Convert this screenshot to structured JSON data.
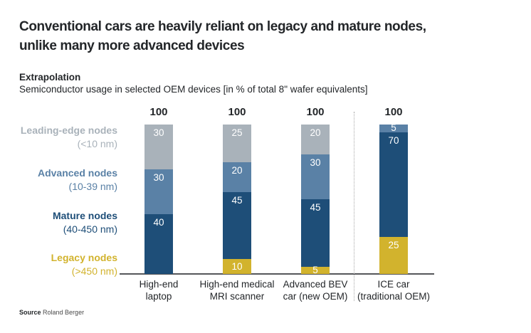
{
  "header": {
    "title_line1": "Conventional cars are heavily reliant on legacy and mature nodes,",
    "title_line2": "unlike many more advanced devices",
    "kicker": "Extrapolation",
    "subtitle": "Semiconductor usage in selected OEM devices [in % of total 8\" wafer equivalents]"
  },
  "footer": {
    "source_label": "Source",
    "source_value": "Roland Berger"
  },
  "chart_data": {
    "type": "bar",
    "stacked": true,
    "title": "Semiconductor usage in selected OEM devices [in % of total 8\" wafer equivalents]",
    "ylim": [
      0,
      100
    ],
    "grid": false,
    "legend_position": "left",
    "categories": [
      {
        "line1": "High-end",
        "line2": "laptop"
      },
      {
        "line1": "High-end medical",
        "line2": "MRI scanner"
      },
      {
        "line1": "Advanced BEV",
        "line2": "car (new OEM)"
      },
      {
        "line1": "ICE car",
        "line2": "(traditional OEM)"
      }
    ],
    "totals": [
      100,
      100,
      100,
      100
    ],
    "series": [
      {
        "name": "Leading-edge nodes",
        "range": "(<10 nm)",
        "color": "#a9b2ba",
        "values": [
          30,
          25,
          20,
          0
        ]
      },
      {
        "name": "Advanced nodes",
        "range": "(10-39 nm)",
        "color": "#5a81a6",
        "values": [
          30,
          20,
          30,
          5
        ]
      },
      {
        "name": "Mature nodes",
        "range": "(40-450 nm)",
        "color": "#1e4e78",
        "values": [
          40,
          45,
          45,
          70
        ]
      },
      {
        "name": "Legacy nodes",
        "range": "(>450 nm)",
        "color": "#d2b32d",
        "values": [
          0,
          10,
          5,
          25
        ]
      }
    ],
    "separator": {
      "style": "dotted",
      "after_category_index": 2
    }
  }
}
